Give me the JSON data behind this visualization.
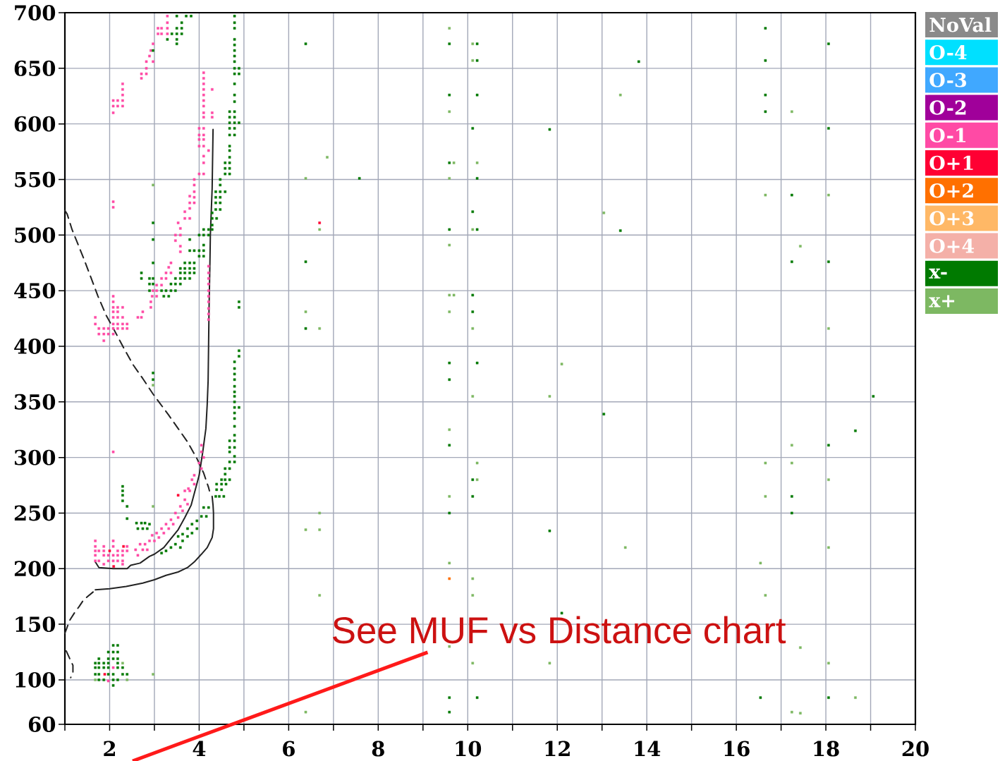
{
  "chart_data": {
    "type": "scatter",
    "xlim": [
      1,
      20
    ],
    "ylim": [
      60,
      700
    ],
    "xticks": [
      {
        "value": 1,
        "label": null
      },
      2,
      {
        "value": 3,
        "label": null
      },
      4,
      {
        "value": 5,
        "label": null
      },
      6,
      {
        "value": 7,
        "label": null
      },
      8,
      {
        "value": 9,
        "label": null
      },
      10,
      {
        "value": 11,
        "label": null
      },
      12,
      {
        "value": 13,
        "label": null
      },
      14,
      {
        "value": 15,
        "label": null
      },
      16,
      {
        "value": 17,
        "label": null
      },
      18,
      {
        "value": 19,
        "label": null
      },
      20
    ],
    "yticks": [
      60,
      100,
      150,
      200,
      250,
      300,
      350,
      400,
      450,
      500,
      550,
      600,
      650,
      700
    ],
    "grid": true,
    "legend": "right",
    "marker": "square",
    "annotations": [
      "See MUF vs Distance chart"
    ],
    "series": [
      {
        "name": "NoVal",
        "color": "#8a8a8a"
      },
      {
        "name": "O-4",
        "color": "#00e0ff"
      },
      {
        "name": "O-3",
        "color": "#40a8ff"
      },
      {
        "name": "O-2",
        "color": "#a0009a"
      },
      {
        "name": "O-1",
        "color": "#ff4aa5",
        "x": [
          3.29,
          3.29,
          3.08,
          3.16,
          3.29,
          3.08,
          3.16,
          3.29,
          2.97,
          2.92,
          2.89,
          2.82,
          2.97,
          2.82,
          2.71,
          2.82,
          2.71,
          2.29,
          2.29,
          2.29,
          2.08,
          2.18,
          2.29,
          2.08,
          2.18,
          2.29,
          2.08,
          4.1,
          4.1,
          4.1,
          4.1,
          4.29,
          4.1,
          4.1,
          4.1,
          4.1,
          4.29,
          4.1,
          4.29,
          4.0,
          4.1,
          4.0,
          4.1,
          4.0,
          4.1,
          4.0,
          4.1,
          4.21,
          4.1,
          4.1,
          4.0,
          4.1,
          3.89,
          3.89,
          3.89,
          3.79,
          3.89,
          3.79,
          3.89,
          3.79,
          3.68,
          3.68,
          3.79,
          3.53,
          3.58,
          3.47,
          3.58,
          3.47,
          3.58,
          3.58,
          2.08,
          2.08,
          3.37,
          3.32,
          3.26,
          3.37,
          3.16,
          3.26,
          3.05,
          3.16,
          2.97,
          3.05,
          2.95,
          3.05,
          2.92,
          2.92,
          2.74,
          2.63,
          2.71,
          4.21,
          4.21,
          4.21,
          4.21,
          4.21,
          4.21,
          4.21,
          4.21,
          4.21,
          4.21,
          2.08,
          2.08,
          2.08,
          2.18,
          2.29,
          2.08,
          2.18,
          1.68,
          2.08,
          2.18,
          2.29,
          1.68,
          2.08,
          2.18,
          2.29,
          2.39,
          1.76,
          1.87,
          1.97,
          2.08,
          2.18,
          2.29,
          2.39,
          1.76,
          1.87,
          1.97,
          2.08,
          1.87,
          2.08,
          4.05,
          4.05,
          4.1,
          4.0,
          4.05,
          3.89,
          3.84,
          3.76,
          3.68,
          3.79,
          3.89,
          3.74,
          3.68,
          3.63,
          3.58,
          3.53,
          3.47,
          3.42,
          3.37,
          3.32,
          3.26,
          3.21,
          3.16,
          3.1,
          3.05,
          3.0,
          2.95,
          2.89,
          2.84,
          2.79,
          2.74,
          2.68,
          2.63,
          2.58,
          1.68,
          2.08,
          1.68,
          1.87,
          2.08,
          2.39,
          1.68,
          1.76,
          1.87,
          2.18,
          2.29,
          2.39,
          1.68,
          1.87,
          1.97,
          2.08,
          2.18,
          2.29,
          1.68,
          1.76,
          1.97,
          2.08,
          2.18,
          2.29,
          1.87,
          2.29,
          1.97,
          2.08
        ],
        "values": [
          697,
          691,
          686,
          686,
          686,
          681,
          681,
          681,
          672,
          666,
          661,
          656,
          656,
          650,
          645,
          645,
          641,
          636,
          631,
          626,
          621,
          621,
          621,
          616,
          616,
          616,
          610,
          646,
          641,
          636,
          631,
          631,
          626,
          621,
          616,
          610,
          610,
          606,
          606,
          596,
          596,
          590,
          590,
          586,
          586,
          580,
          580,
          576,
          571,
          565,
          555,
          555,
          550,
          545,
          539,
          535,
          534,
          529,
          529,
          524,
          521,
          515,
          515,
          511,
          506,
          500,
          500,
          495,
          490,
          485,
          530,
          525,
          475,
          471,
          466,
          466,
          461,
          461,
          455,
          455,
          450,
          450,
          445,
          445,
          440,
          435,
          431,
          426,
          426,
          472,
          466,
          461,
          456,
          450,
          445,
          440,
          434,
          429,
          424,
          445,
          440,
          435,
          435,
          435,
          431,
          431,
          426,
          426,
          426,
          426,
          420,
          420,
          420,
          420,
          420,
          416,
          416,
          416,
          416,
          416,
          416,
          416,
          411,
          411,
          411,
          411,
          405,
          305,
          311,
          305,
          300,
          295,
          290,
          284,
          280,
          272,
          270,
          270,
          276,
          258,
          262,
          252,
          256,
          246,
          250,
          240,
          244,
          236,
          240,
          232,
          236,
          228,
          232,
          225,
          230,
          225,
          217,
          222,
          217,
          222,
          212,
          217,
          225,
          225,
          220,
          220,
          220,
          220,
          216,
          216,
          216,
          216,
          216,
          216,
          212,
          212,
          212,
          212,
          212,
          212,
          207,
          207,
          207,
          207,
          207,
          207,
          204,
          204,
          99,
          111
        ]
      },
      {
        "name": "O+1",
        "color": "#ff0033",
        "x": [
          3.53,
          2.31,
          2.0,
          2.09,
          1.89,
          6.69
        ],
        "values": [
          266,
          220,
          216,
          202,
          105,
          511
        ]
      },
      {
        "name": "O+2",
        "color": "#ff7000",
        "x": [
          9.59
        ],
        "values": [
          191
        ]
      },
      {
        "name": "O+3",
        "color": "#ffb866"
      },
      {
        "name": "O+4",
        "color": "#f4b0a8"
      },
      {
        "name": "x-",
        "color": "#007a00",
        "x": [
          3.5,
          3.71,
          3.82,
          3.61,
          3.5,
          3.61,
          3.39,
          3.5,
          3.61,
          3.29,
          3.5,
          3.5,
          2.97,
          4.79,
          4.79,
          4.79,
          4.79,
          4.79,
          4.79,
          4.79,
          4.79,
          4.79,
          4.89,
          4.79,
          4.89,
          4.79,
          4.79,
          4.79,
          4.68,
          4.79,
          4.68,
          4.79,
          4.68,
          4.79,
          4.89,
          4.68,
          4.79,
          4.68,
          4.79,
          4.68,
          4.68,
          4.68,
          4.58,
          4.68,
          4.58,
          4.68,
          4.58,
          4.68,
          4.47,
          4.47,
          4.37,
          4.47,
          4.58,
          4.37,
          4.47,
          4.37,
          4.47,
          4.37,
          4.47,
          4.29,
          4.29,
          4.39,
          4.29,
          4.21,
          4.29,
          4.1,
          4.0,
          4.1,
          4.21,
          3.79,
          2.97,
          2.97,
          3.79,
          3.89,
          4.0,
          4.1,
          4.1,
          4.0,
          4.1,
          3.68,
          3.79,
          3.89,
          3.58,
          3.68,
          3.79,
          3.89,
          3.58,
          3.68,
          3.79,
          3.89,
          3.47,
          3.58,
          3.68,
          3.79,
          3.37,
          3.47,
          3.58,
          3.16,
          3.26,
          3.37,
          3.47,
          3.21,
          3.32,
          2.97,
          2.71,
          2.71,
          2.89,
          2.97,
          2.89,
          2.97,
          2.89,
          4.89,
          4.89,
          4.89,
          4.89,
          4.79,
          4.79,
          4.79,
          4.79,
          4.79,
          4.79,
          4.79,
          4.79,
          4.79,
          4.79,
          4.79,
          4.89,
          4.79,
          4.79,
          4.68,
          4.79,
          4.68,
          4.79,
          4.68,
          4.79,
          4.68,
          4.79,
          4.58,
          4.68,
          4.58,
          4.5,
          4.58,
          4.68,
          4.39,
          4.5,
          4.6,
          4.39,
          4.5,
          4.45,
          4.55,
          2.97,
          2.97,
          2.29,
          2.29,
          2.29,
          2.29,
          2.39,
          2.39,
          2.6,
          2.71,
          2.79,
          2.89,
          2.63,
          2.74,
          2.84,
          3.53,
          3.63,
          3.74,
          3.84,
          3.95,
          3.63,
          3.74,
          3.84,
          3.95,
          4.05,
          4.16,
          4.1,
          4.21,
          4.37,
          3.16,
          3.26,
          3.37,
          3.47,
          3.58,
          2.08,
          2.18,
          1.97,
          2.08,
          2.18,
          1.76,
          1.97,
          2.08,
          2.18,
          1.68,
          1.76,
          1.87,
          1.97,
          2.18,
          1.68,
          1.76,
          1.87,
          1.97,
          2.18,
          2.29,
          1.68,
          1.76,
          1.97,
          2.08,
          2.29,
          2.39,
          1.76,
          1.87,
          2.08,
          2.18,
          2.08,
          6.38,
          9.59,
          10.21,
          10.21,
          13.82,
          16.65,
          16.65,
          18.06,
          9.59,
          10.21,
          16.65,
          16.65,
          10.11,
          11.83,
          18.06,
          7.58,
          9.59,
          10.21,
          17.24,
          10.11,
          9.59,
          10.21,
          13.41,
          6.38,
          17.24,
          18.06,
          10.11,
          10.11,
          6.38,
          9.59,
          10.21,
          9.59,
          13.04,
          19.06,
          18.66,
          9.59,
          18.06,
          10.11,
          10.11,
          9.59,
          17.24,
          17.24,
          11.83,
          12.1,
          9.59,
          10.21,
          16.54,
          18.06,
          9.59
        ],
        "values": [
          697,
          697,
          697,
          691,
          686,
          686,
          681,
          681,
          681,
          676,
          676,
          672,
          666,
          697,
          691,
          686,
          676,
          671,
          666,
          661,
          656,
          650,
          650,
          645,
          645,
          636,
          626,
          620,
          611,
          611,
          606,
          606,
          601,
          601,
          601,
          596,
          596,
          590,
          590,
          580,
          576,
          570,
          565,
          565,
          560,
          560,
          555,
          555,
          550,
          545,
          539,
          539,
          539,
          534,
          534,
          529,
          529,
          523,
          523,
          520,
          515,
          515,
          509,
          505,
          505,
          505,
          500,
          500,
          500,
          496,
          511,
          496,
          486,
          486,
          486,
          486,
          491,
          481,
          481,
          475,
          475,
          475,
          470,
          470,
          470,
          470,
          466,
          466,
          466,
          466,
          461,
          461,
          461,
          461,
          456,
          456,
          456,
          450,
          450,
          450,
          450,
          445,
          445,
          475,
          466,
          461,
          461,
          461,
          456,
          456,
          450,
          440,
          435,
          396,
          391,
          386,
          380,
          375,
          370,
          364,
          359,
          355,
          350,
          345,
          340,
          335,
          345,
          328,
          320,
          315,
          315,
          309,
          309,
          305,
          301,
          296,
          296,
          290,
          290,
          285,
          280,
          280,
          280,
          276,
          276,
          276,
          271,
          271,
          265,
          265,
          376,
          370,
          274,
          270,
          266,
          261,
          256,
          245,
          241,
          241,
          241,
          240,
          236,
          236,
          236,
          229,
          231,
          236,
          240,
          243,
          225,
          229,
          232,
          236,
          247,
          247,
          255,
          255,
          265,
          214,
          216,
          219,
          222,
          219,
          131,
          131,
          125,
          125,
          125,
          119,
          119,
          119,
          119,
          115,
          115,
          115,
          115,
          115,
          111,
          111,
          111,
          111,
          111,
          111,
          105,
          105,
          105,
          105,
          105,
          105,
          100,
          100,
          100,
          100,
          95,
          672,
          672,
          672,
          657,
          656,
          686,
          657,
          672,
          626,
          626,
          626,
          611,
          596,
          595,
          596,
          551,
          565,
          551,
          536,
          521,
          505,
          505,
          504,
          476,
          476,
          476,
          446,
          431,
          416,
          385,
          385,
          370,
          339,
          355,
          324,
          311,
          311,
          280,
          265,
          250,
          265,
          250,
          234,
          160,
          84,
          84,
          84,
          84,
          71
        ]
      },
      {
        "name": "x+",
        "color": "#7db862",
        "x": [
          9.59,
          10.11,
          10.11,
          13.41,
          9.59,
          17.24,
          6.86,
          6.38,
          9.69,
          10.21,
          9.59,
          16.65,
          18.06,
          6.69,
          13.04,
          10.11,
          9.59,
          17.43,
          9.59,
          9.69,
          6.38,
          9.59,
          6.69,
          10.11,
          18.06,
          12.1,
          10.11,
          11.83,
          9.59,
          17.24,
          10.21,
          10.21,
          9.59,
          16.65,
          16.65,
          17.24,
          18.06,
          6.38,
          6.69,
          6.69,
          13.52,
          18.06,
          9.59,
          10.11,
          10.11,
          16.54,
          16.65,
          6.69,
          9.59,
          17.43,
          10.11,
          11.83,
          18.06,
          18.66,
          6.38,
          17.24,
          17.43,
          2.97,
          2.97,
          2.97,
          1.68,
          2.39,
          2.29,
          2.97
        ],
        "values": [
          686,
          672,
          657,
          626,
          611,
          611,
          570,
          551,
          565,
          565,
          551,
          536,
          536,
          505,
          520,
          505,
          491,
          490,
          446,
          446,
          431,
          431,
          416,
          416,
          416,
          384,
          355,
          355,
          325,
          311,
          295,
          280,
          265,
          295,
          265,
          295,
          280,
          235,
          235,
          250,
          219,
          219,
          205,
          191,
          176,
          205,
          176,
          176,
          130,
          129,
          115,
          115,
          115,
          84,
          71,
          71,
          70,
          545,
          365,
          105,
          100,
          100,
          115,
          256
        ]
      },
      {
        "type": "line",
        "color": "#222222",
        "line_style": "solid",
        "marker": "none",
        "x": [
          1.68,
          1.76,
          2.08,
          2.39,
          2.47,
          2.68,
          2.89,
          3.0,
          3.21,
          3.37,
          3.53,
          3.68,
          3.82,
          3.92,
          4.0,
          4.08,
          4.15,
          4.18,
          4.2,
          4.21,
          4.22,
          4.24,
          4.25,
          4.29,
          4.31
        ],
        "values": [
          206,
          201,
          200,
          200,
          203,
          205,
          211,
          213,
          219,
          227,
          235,
          246,
          257,
          272,
          284,
          305,
          326,
          348,
          369,
          400,
          432,
          474,
          500,
          542,
          595
        ]
      },
      {
        "type": "line",
        "color": "#222222",
        "line_style": "solid",
        "marker": "none",
        "x": [
          1.68,
          2.0,
          2.37,
          2.74,
          3.0,
          3.26,
          3.53,
          3.74,
          3.89,
          4.05,
          4.18,
          4.29,
          4.32,
          4.32,
          4.31,
          4.29
        ],
        "values": [
          181,
          182,
          184,
          187,
          190,
          194,
          197,
          201,
          206,
          213,
          219,
          228,
          236,
          250,
          257,
          265
        ]
      },
      {
        "type": "line",
        "color": "#222222",
        "line_style": "dashed",
        "marker": "none",
        "x": [
          1.03,
          1.11,
          1.18,
          1.18,
          1.13
        ],
        "values": [
          126,
          119,
          113,
          107,
          102
        ]
      },
      {
        "type": "line",
        "color": "#222222",
        "line_style": "dashed",
        "marker": "none",
        "x": [
          1.0,
          1.03,
          1.1,
          1.21,
          1.32,
          1.42,
          1.63
        ],
        "values": [
          142,
          145,
          153,
          160,
          166,
          172,
          179
        ]
      },
      {
        "type": "line",
        "color": "#222222",
        "line_style": "dashed",
        "marker": "none",
        "x": [
          1.0,
          1.05,
          1.16,
          1.26,
          1.42,
          1.58,
          1.74,
          1.92,
          2.11,
          2.32,
          2.53,
          2.74,
          2.97,
          3.1,
          3.32,
          3.53,
          3.74,
          3.95,
          4.1,
          4.21,
          4.23
        ],
        "values": [
          522,
          519,
          505,
          495,
          479,
          462,
          445,
          428,
          414,
          398,
          383,
          371,
          357,
          350,
          338,
          326,
          314,
          299,
          286,
          273,
          270
        ]
      }
    ]
  }
}
